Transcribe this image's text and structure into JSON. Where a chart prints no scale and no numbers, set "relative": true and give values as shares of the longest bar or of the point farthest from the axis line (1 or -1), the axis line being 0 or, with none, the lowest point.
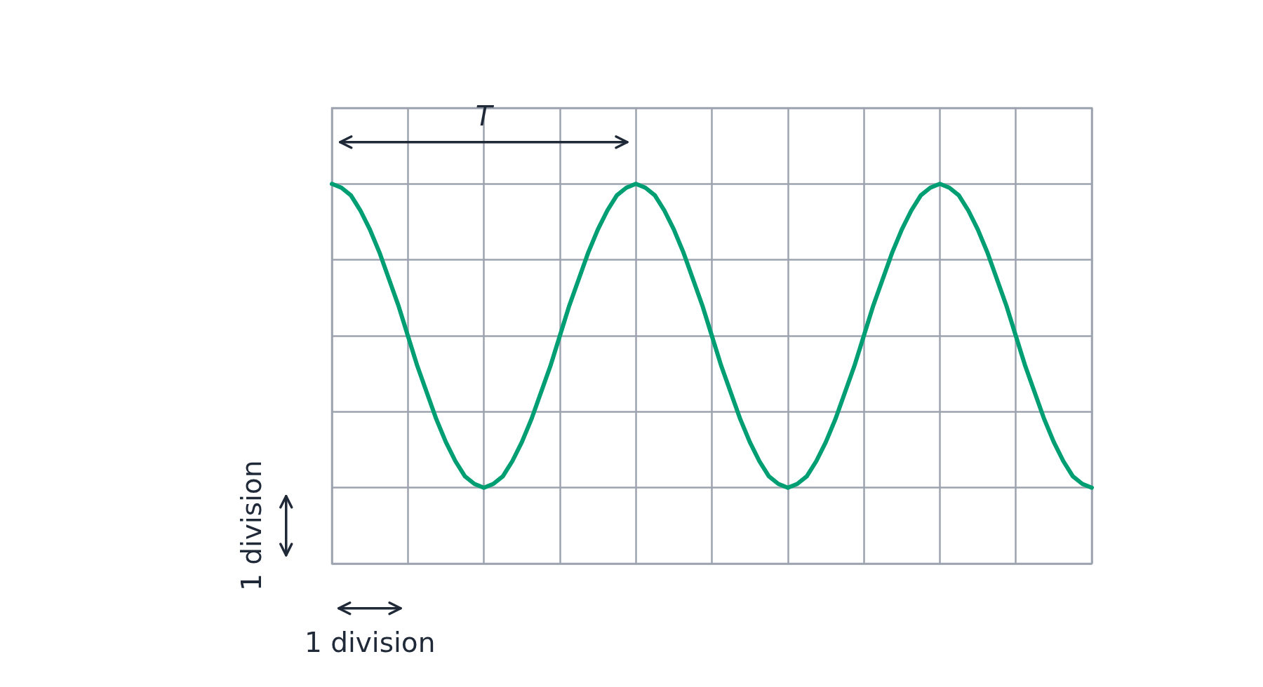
{
  "chart_data": {
    "type": "line",
    "relative": true,
    "categories": [
      null,
      null,
      null,
      null,
      null,
      null,
      null,
      null,
      null,
      null,
      null,
      null,
      null,
      null,
      null,
      null,
      null,
      null,
      null,
      null,
      null,
      null,
      null,
      null,
      null,
      null,
      null,
      null,
      null,
      null,
      null,
      null,
      null,
      null,
      null,
      null,
      null,
      null,
      null,
      null,
      null,
      null,
      null,
      null,
      null,
      null,
      null,
      null,
      null,
      null,
      null,
      null,
      null,
      null,
      null,
      null,
      null,
      null,
      null,
      null,
      null,
      null,
      null,
      null,
      null,
      null,
      null,
      null,
      null,
      null,
      null,
      null,
      null,
      null,
      null,
      null,
      null,
      null,
      null,
      null,
      null
    ],
    "series": [
      {
        "color": "#009e73",
        "values": [
          1,
          0.99,
          0.97,
          0.93,
          0.88,
          0.82,
          0.75,
          0.68,
          0.6,
          0.52,
          0.45,
          0.38,
          0.32,
          0.27,
          0.23,
          0.21,
          0.2,
          0.21,
          0.23,
          0.27,
          0.32,
          0.38,
          0.45,
          0.52,
          0.6,
          0.68,
          0.75,
          0.82,
          0.88,
          0.93,
          0.97,
          0.99,
          1,
          0.99,
          0.97,
          0.93,
          0.88,
          0.82,
          0.75,
          0.68,
          0.6,
          0.52,
          0.45,
          0.38,
          0.32,
          0.27,
          0.23,
          0.21,
          0.2,
          0.21,
          0.23,
          0.27,
          0.32,
          0.38,
          0.45,
          0.52,
          0.6,
          0.68,
          0.75,
          0.82,
          0.88,
          0.93,
          0.97,
          0.99,
          1,
          0.99,
          0.97,
          0.93,
          0.88,
          0.82,
          0.75,
          0.68,
          0.6,
          0.52,
          0.45,
          0.38,
          0.32,
          0.27,
          0.23,
          0.21,
          0.2
        ]
      }
    ],
    "grid": true,
    "annotations": [
      "T",
      "1 division",
      "1 division"
    ]
  }
}
